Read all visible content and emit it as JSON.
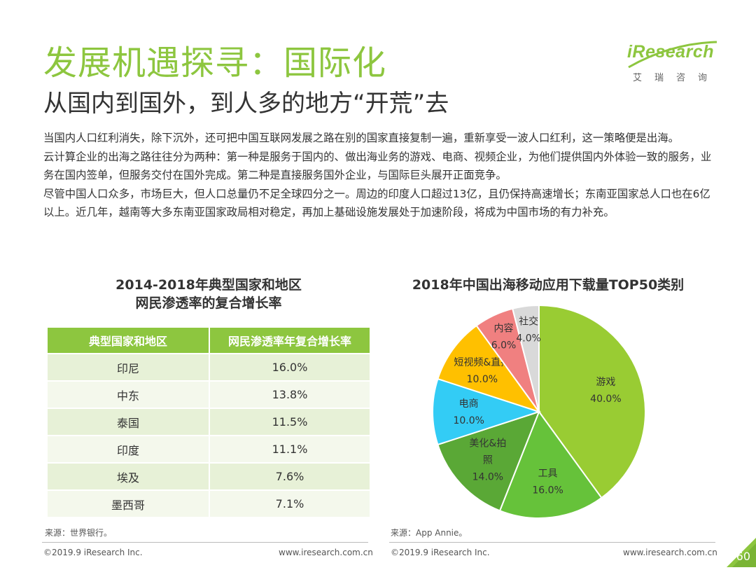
{
  "header": {
    "title": "发展机遇探寻：国际化",
    "subtitle": "从国内到国外，到人多的地方“开荒”去"
  },
  "logo": {
    "brand": "iResearch",
    "sub": "艾瑞咨询"
  },
  "paragraphs": [
    "当国内人口红利消失，除下沉外，还可把中国互联网发展之路在别的国家直接复制一遍，重新享受一波人口红利，这一策略便是出海。",
    "云计算企业的出海之路往往分为两种：第一种是服务于国内的、做出海业务的游戏、电商、视频企业，为他们提供国内外体验一致的服务，业务在国内签单，但服务交付在国外完成。第二种是直接服务国外企业，与国际巨头展开正面竞争。",
    "尽管中国人口众多，市场巨大，但人口总量仍不足全球四分之一。周边的印度人口超过13亿，且仍保持高速增长；东南亚国家总人口也在6亿以上。近几年，越南等大多东南亚国家政局相对稳定，再加上基础设施发展处于加速阶段，将成为中国市场的有力补充。"
  ],
  "table_title": {
    "line1": "2014-2018年典型国家和地区",
    "line2": "网民渗透率的复合增长率"
  },
  "pie_title": "2018年中国出海移动应用下载量TOP50类别",
  "chart_data": [
    {
      "type": "table",
      "title": "2014-2018年典型国家和地区网民渗透率的复合增长率",
      "columns": [
        "典型国家和地区",
        "网民渗透率年复合增长率"
      ],
      "rows": [
        [
          "印尼",
          "16.0%"
        ],
        [
          "中东",
          "13.8%"
        ],
        [
          "泰国",
          "11.5%"
        ],
        [
          "印度",
          "11.1%"
        ],
        [
          "埃及",
          "7.6%"
        ],
        [
          "墨西哥",
          "7.1%"
        ]
      ]
    },
    {
      "type": "pie",
      "title": "2018年中国出海移动应用下载量TOP50类别",
      "slices": [
        {
          "label": "游戏",
          "value": 40.0,
          "display": "40.0%",
          "color": "#99cc33"
        },
        {
          "label": "工具",
          "value": 16.0,
          "display": "16.0%",
          "color": "#66c23a"
        },
        {
          "label": "美化&拍照",
          "label_lines": [
            "美化&拍",
            "照"
          ],
          "value": 14.0,
          "display": "14.0%",
          "color": "#5aa836"
        },
        {
          "label": "电商",
          "value": 10.0,
          "display": "10.0%",
          "color": "#33ccf5"
        },
        {
          "label": "短视频&直播",
          "value": 10.0,
          "display": "10.0%",
          "color": "#ffc000"
        },
        {
          "label": "内容",
          "value": 6.0,
          "display": "6.0%",
          "color": "#f08080"
        },
        {
          "label": "社交",
          "value": 4.0,
          "display": "4.0%",
          "color": "#d9d9d9"
        }
      ]
    }
  ],
  "sources": {
    "left": "来源：世界银行。",
    "right": "来源：App Annie。"
  },
  "footer": {
    "copyright": "©2019.9 iResearch Inc.",
    "url": "www.iresearch.com.cn",
    "page": "60"
  },
  "colors": {
    "brand_green": "#8dc63f",
    "row_odd": "#e7f1d7",
    "row_even": "#f4f8ec"
  }
}
